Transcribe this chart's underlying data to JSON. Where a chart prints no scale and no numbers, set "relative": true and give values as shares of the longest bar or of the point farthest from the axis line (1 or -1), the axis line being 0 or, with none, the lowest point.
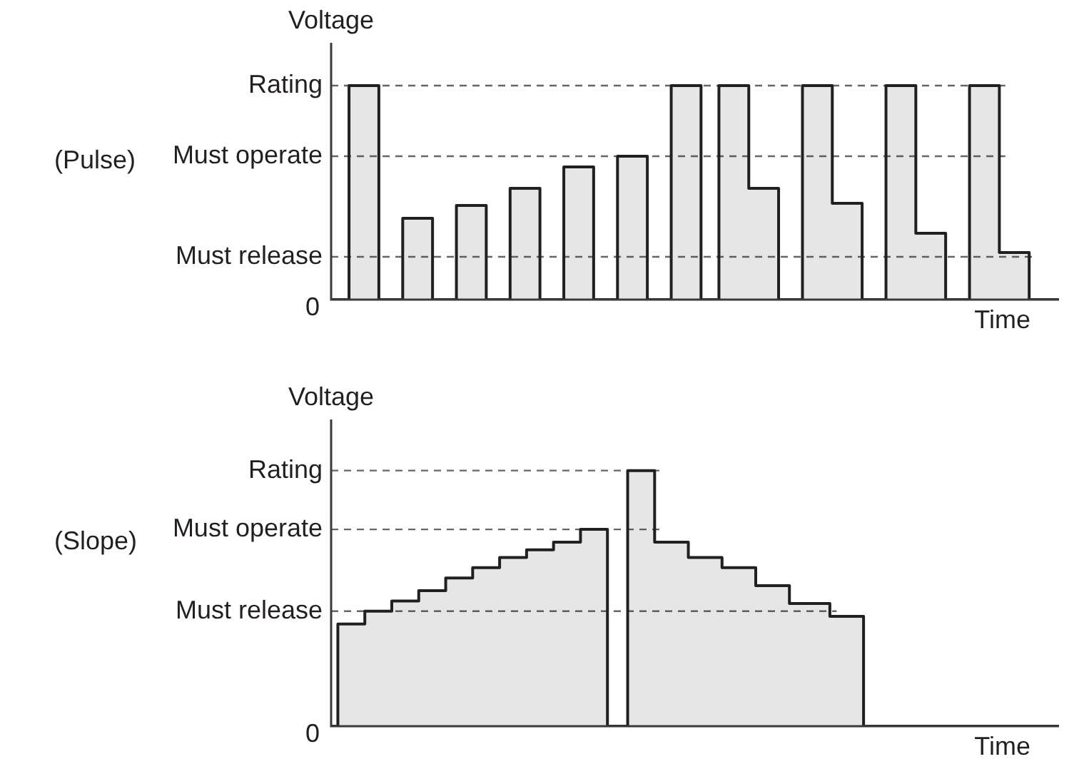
{
  "chart_data": [
    {
      "type": "area",
      "xlabel": "Time",
      "ylabel": "Voltage",
      "relative": true,
      "categories": [
        null,
        null,
        null,
        null,
        null,
        null,
        null,
        null,
        null,
        null,
        null,
        null,
        null,
        null,
        null,
        null,
        null,
        null,
        null,
        null,
        null,
        null,
        null,
        null,
        null,
        null,
        null,
        null,
        null,
        null,
        null,
        null,
        null,
        null,
        null,
        null,
        null,
        null,
        null,
        null,
        null,
        null,
        null,
        null,
        null,
        null,
        null,
        null,
        null,
        null,
        null,
        null,
        null,
        null,
        null,
        null,
        null,
        null,
        null,
        null,
        null,
        null,
        null,
        null,
        null,
        null,
        null,
        null,
        null,
        null,
        null,
        null,
        null,
        null,
        null,
        null,
        null,
        null,
        null,
        null,
        null,
        null,
        null,
        null,
        null,
        null,
        null,
        null,
        null,
        null,
        null,
        null,
        null,
        null,
        null,
        null,
        null,
        null,
        null,
        null,
        null,
        null,
        null,
        null,
        null,
        null,
        null,
        null,
        null,
        null,
        null,
        null,
        null,
        null,
        null,
        null,
        null,
        null,
        null,
        null,
        null,
        null,
        null
      ],
      "series": [
        {
          "color": "#231f20",
          "values": [
            0,
            0,
            0,
            0,
            1,
            1,
            1,
            1,
            1,
            0,
            0,
            0,
            0,
            0.38,
            0.38,
            0.38,
            0.38,
            0.38,
            0,
            0,
            0,
            0,
            0.44,
            0.44,
            0.44,
            0.44,
            0.44,
            0,
            0,
            0,
            0,
            0.52,
            0.52,
            0.52,
            0.52,
            0.52,
            0,
            0,
            0,
            0,
            0.62,
            0.62,
            0.62,
            0.62,
            0.62,
            0,
            0,
            0,
            0,
            0.67,
            0.67,
            0.67,
            0.67,
            0.67,
            0,
            0,
            0,
            0,
            1,
            1,
            1,
            1,
            1,
            0,
            0,
            0,
            1,
            1,
            1,
            1,
            1,
            0.52,
            0.52,
            0.52,
            0.52,
            0.52,
            0,
            0,
            0,
            0,
            1,
            1,
            1,
            1,
            1,
            0.45,
            0.45,
            0.45,
            0.45,
            0.45,
            0,
            0,
            0,
            0,
            1,
            1,
            1,
            1,
            1,
            0.31,
            0.31,
            0.31,
            0.31,
            0.31,
            0,
            0,
            0,
            0,
            1,
            1,
            1,
            1,
            1,
            0.22,
            0.22,
            0.22,
            0.22,
            0.22,
            0,
            0,
            0,
            0,
            0
          ]
        }
      ],
      "ref_lines": [
        {
          "axis": "y",
          "value": 1,
          "label": "Rating",
          "color": "#666666",
          "line_style": "dashed"
        },
        {
          "axis": "y",
          "value": 0.67,
          "label": "Must operate",
          "color": "#666666",
          "line_style": "dashed"
        },
        {
          "axis": "y",
          "value": 0.2,
          "label": "Must release",
          "color": "#666666",
          "line_style": "dashed"
        }
      ],
      "annotations": [
        "(Pulse)",
        "0"
      ]
    },
    {
      "type": "area",
      "xlabel": "Time",
      "ylabel": "Voltage",
      "relative": true,
      "categories": [
        null,
        null,
        null,
        null,
        null,
        null,
        null,
        null,
        null,
        null,
        null,
        null,
        null,
        null,
        null,
        null,
        null,
        null,
        null,
        null,
        null,
        null,
        null,
        null,
        null,
        null,
        null,
        null,
        null,
        null,
        null,
        null,
        null,
        null,
        null,
        null,
        null,
        null,
        null,
        null,
        null,
        null,
        null,
        null,
        null,
        null,
        null,
        null,
        null,
        null,
        null,
        null,
        null,
        null,
        null,
        null,
        null,
        null,
        null,
        null,
        null,
        null,
        null,
        null,
        null,
        null,
        null,
        null,
        null,
        null,
        null,
        null,
        null,
        null,
        null,
        null,
        null,
        null,
        null,
        null,
        null,
        null,
        null,
        null,
        null,
        null,
        null,
        null,
        null,
        null,
        null,
        null,
        null,
        null,
        null,
        null,
        null,
        null,
        null,
        null,
        null,
        null,
        null,
        null,
        null,
        null,
        null,
        null,
        null
      ],
      "series": [
        {
          "color": "#231f20",
          "values": [
            0,
            0,
            0.4,
            0.4,
            0.4,
            0.4,
            0.45,
            0.45,
            0.45,
            0.45,
            0.49,
            0.49,
            0.49,
            0.49,
            0.53,
            0.53,
            0.53,
            0.53,
            0.58,
            0.58,
            0.58,
            0.58,
            0.62,
            0.62,
            0.62,
            0.62,
            0.66,
            0.66,
            0.66,
            0.66,
            0.69,
            0.69,
            0.69,
            0.69,
            0.72,
            0.72,
            0.72,
            0.72,
            0.77,
            0.77,
            0.77,
            0.77,
            0,
            0,
            0,
            1,
            1,
            1,
            1,
            0.72,
            0.72,
            0.72,
            0.72,
            0.72,
            0.66,
            0.66,
            0.66,
            0.66,
            0.66,
            0.62,
            0.62,
            0.62,
            0.62,
            0.62,
            0.55,
            0.55,
            0.55,
            0.55,
            0.55,
            0.48,
            0.48,
            0.48,
            0.48,
            0.48,
            0.48,
            0.43,
            0.43,
            0.43,
            0.43,
            0.43,
            0,
            0,
            0,
            0,
            0,
            0,
            0,
            0,
            0,
            0,
            0,
            0,
            0,
            0,
            0,
            0,
            0,
            0,
            0,
            0,
            0,
            0,
            0,
            0,
            0,
            0,
            0,
            0,
            0
          ]
        }
      ],
      "ref_lines": [
        {
          "axis": "y",
          "value": 1,
          "label": "Rating",
          "color": "#666666",
          "line_style": "dashed"
        },
        {
          "axis": "y",
          "value": 0.77,
          "label": "Must operate",
          "color": "#666666",
          "line_style": "dashed"
        },
        {
          "axis": "y",
          "value": 0.45,
          "label": "Must release",
          "color": "#666666",
          "line_style": "dashed"
        }
      ],
      "annotations": [
        "(Slope)",
        "0"
      ]
    }
  ]
}
